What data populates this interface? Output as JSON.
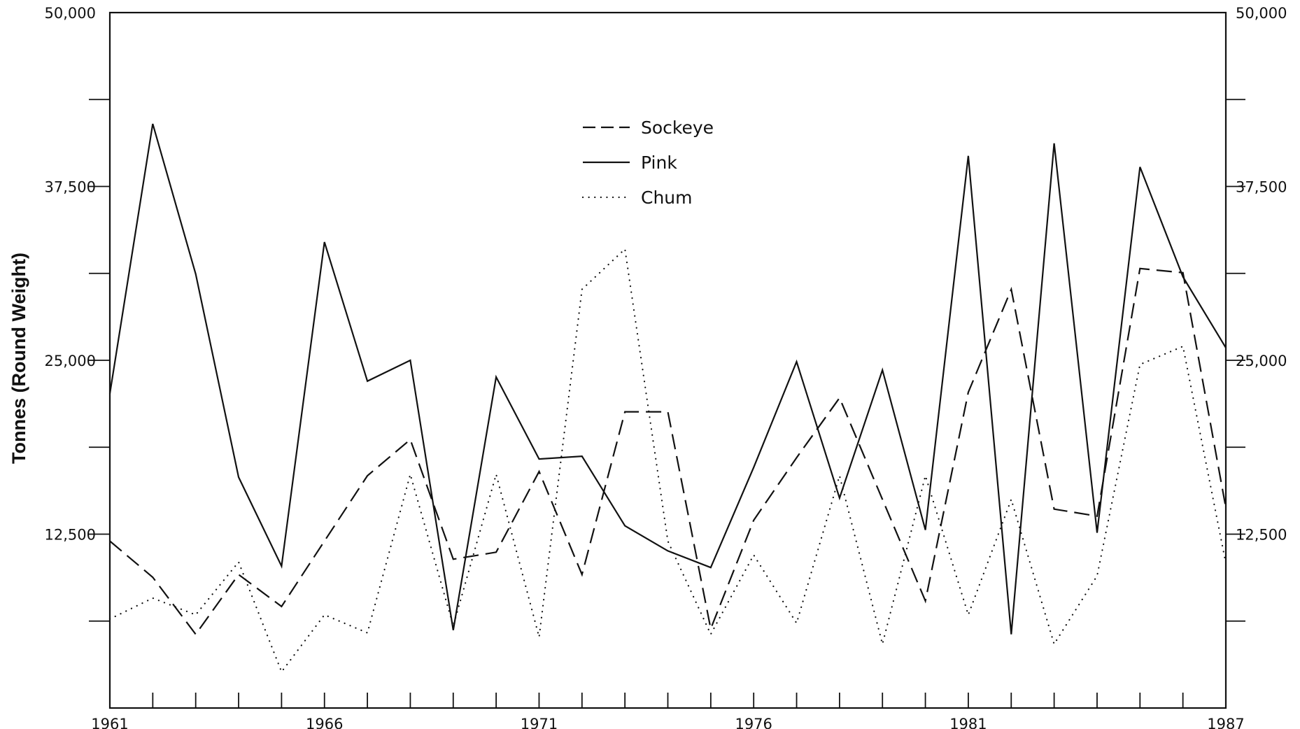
{
  "chart_data": {
    "type": "line",
    "title": "",
    "xlabel": "",
    "ylabel": "Tonnes (Round Weight)",
    "xlim": [
      1961,
      1987
    ],
    "ylim": [
      0,
      50000
    ],
    "x_tick_labels": [
      "1961",
      "1966",
      "1971",
      "1976",
      "1981",
      "1987"
    ],
    "y_tick_labels_left": [
      "50,000",
      "37,500",
      "25,000",
      "12,500"
    ],
    "y_tick_labels_right": [
      "50,000",
      "37,500",
      "25,000",
      "12,500"
    ],
    "legend_position": "top-center",
    "grid": false,
    "x": [
      1961,
      1962,
      1963,
      1964,
      1965,
      1966,
      1967,
      1968,
      1969,
      1970,
      1971,
      1972,
      1973,
      1974,
      1975,
      1976,
      1977,
      1978,
      1979,
      1980,
      1981,
      1982,
      1983,
      1984,
      1985,
      1986,
      1987
    ],
    "series": [
      {
        "name": "Sockeye",
        "style": "dashed",
        "color": "#111111",
        "values": [
          12000,
          9400,
          5300,
          9600,
          7300,
          12000,
          16700,
          19300,
          10700,
          11200,
          17000,
          9600,
          21300,
          21300,
          5700,
          13500,
          18000,
          22300,
          15000,
          7700,
          22700,
          30100,
          14300,
          13800,
          31600,
          31300,
          14400
        ]
      },
      {
        "name": "Pink",
        "style": "solid",
        "color": "#111111",
        "values": [
          22600,
          42000,
          31200,
          16600,
          10200,
          33500,
          23500,
          25000,
          5600,
          23800,
          17900,
          18100,
          13100,
          11300,
          10100,
          17300,
          24900,
          15100,
          24300,
          12800,
          39700,
          5300,
          40600,
          12600,
          38900,
          31000,
          25900
        ]
      },
      {
        "name": "Chum",
        "style": "dotted",
        "color": "#111111",
        "values": [
          6400,
          7900,
          6700,
          10500,
          2600,
          6700,
          5400,
          16800,
          5900,
          16800,
          5100,
          30100,
          33000,
          12000,
          5300,
          11000,
          6100,
          16700,
          4600,
          16700,
          6700,
          15000,
          4600,
          9500,
          24700,
          26000,
          10400
        ]
      }
    ]
  }
}
